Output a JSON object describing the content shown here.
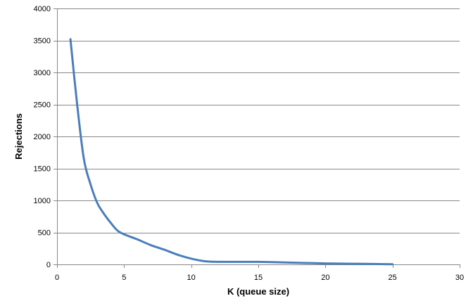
{
  "chart_data": {
    "type": "line",
    "title": "",
    "xlabel": "K (queue size)",
    "ylabel": "Rejections",
    "xlim": [
      0,
      30
    ],
    "ylim": [
      0,
      4000
    ],
    "x_ticks": [
      "0",
      "5",
      "10",
      "15",
      "20",
      "25",
      "30"
    ],
    "y_ticks": [
      "0",
      "500",
      "1000",
      "1500",
      "2000",
      "2500",
      "3000",
      "3500",
      "4000"
    ],
    "grid": "horizontal",
    "legend": "none",
    "series": [
      {
        "color": "#4a7ebb",
        "x": [
          1,
          1.5,
          2,
          2.5,
          3,
          3.5,
          4,
          4.5,
          5,
          6,
          7,
          8,
          9,
          10,
          11,
          12,
          13,
          14,
          15,
          16,
          17,
          18,
          19,
          20,
          21,
          22,
          23,
          24,
          25
        ],
        "y": [
          3520,
          2500,
          1650,
          1250,
          960,
          790,
          650,
          530,
          470,
          390,
          300,
          230,
          150,
          90,
          50,
          40,
          40,
          40,
          40,
          35,
          30,
          25,
          20,
          15,
          12,
          10,
          8,
          5,
          3
        ]
      }
    ]
  }
}
